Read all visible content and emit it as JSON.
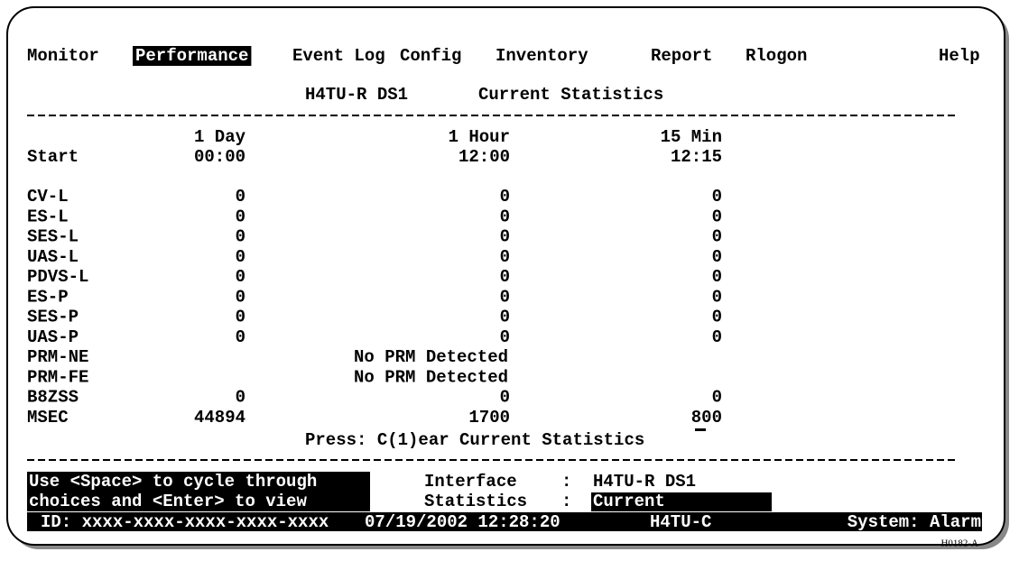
{
  "menu": {
    "items": [
      "Monitor",
      "Performance",
      "Event Log",
      "Config",
      "Inventory",
      "Report",
      "Rlogon",
      "Help"
    ],
    "selected_index": 1
  },
  "title": {
    "interface": "H4TU-R DS1",
    "text": "Current Statistics"
  },
  "columns": [
    "1 Day",
    "1 Hour",
    "15 Min"
  ],
  "start": {
    "label": "Start",
    "values": [
      "00:00",
      "12:00",
      "12:15"
    ]
  },
  "rows": [
    {
      "label": "CV-L",
      "values": [
        0,
        0,
        0
      ]
    },
    {
      "label": "ES-L",
      "values": [
        0,
        0,
        0
      ]
    },
    {
      "label": "SES-L",
      "values": [
        0,
        0,
        0
      ]
    },
    {
      "label": "UAS-L",
      "values": [
        0,
        0,
        0
      ]
    },
    {
      "label": "PDVS-L",
      "values": [
        0,
        0,
        0
      ]
    },
    {
      "label": "ES-P",
      "values": [
        0,
        0,
        0
      ]
    },
    {
      "label": "SES-P",
      "values": [
        0,
        0,
        0
      ]
    },
    {
      "label": "UAS-P",
      "values": [
        0,
        0,
        0
      ]
    },
    {
      "label": "PRM-NE",
      "message": "No PRM Detected"
    },
    {
      "label": "PRM-FE",
      "message": "No PRM Detected"
    },
    {
      "label": "B8ZSS",
      "values": [
        0,
        0,
        0
      ]
    },
    {
      "label": "MSEC",
      "values": [
        44894,
        1700,
        800
      ]
    }
  ],
  "prompt": "Press: C(1)ear Current Statistics",
  "help": [
    "Use <Space> to cycle through",
    "choices and <Enter> to view"
  ],
  "fields": [
    {
      "label": "Interface",
      "separator": ":",
      "value": "H4TU-R DS1"
    },
    {
      "label": "Statistics",
      "separator": ":",
      "value": "Current"
    }
  ],
  "status": {
    "id": "ID: xxxx-xxxx-xxxx-xxxx-xxxx",
    "datetime": "07/19/2002 12:28:20",
    "unit": "H4TU-C",
    "system": "System: Alarm"
  },
  "figure_id": "H0182-A"
}
